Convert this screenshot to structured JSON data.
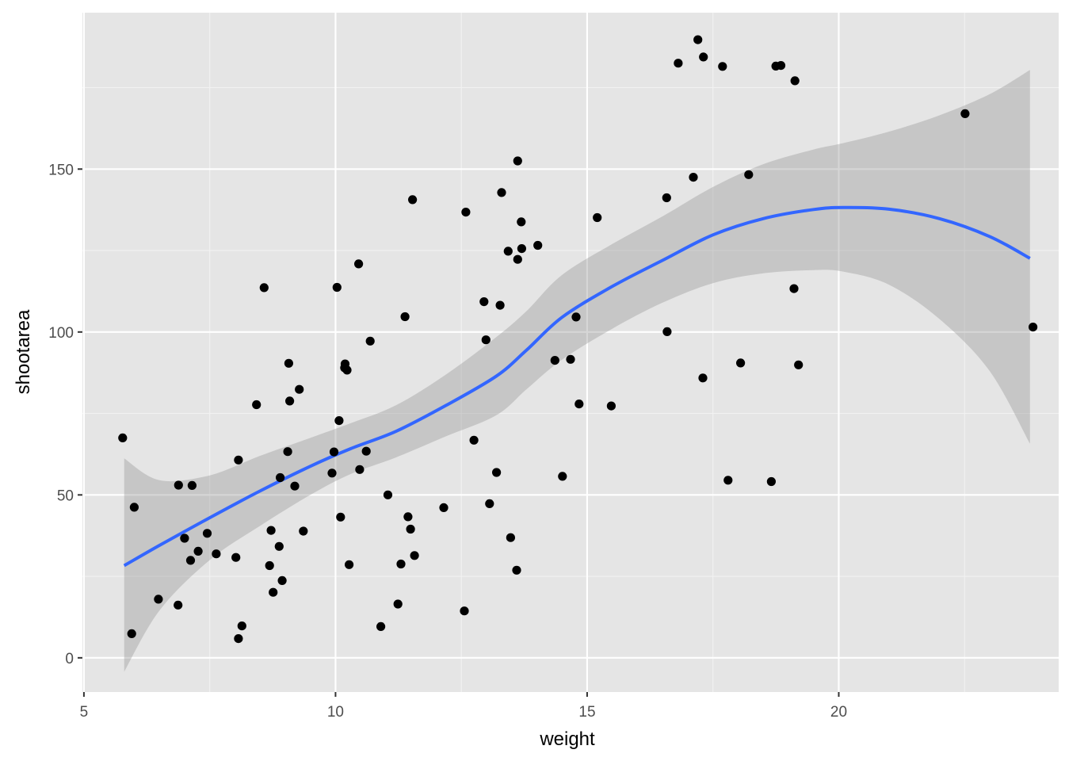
{
  "chart_data": {
    "type": "scatter",
    "title": "",
    "xlabel": "weight",
    "ylabel": "shootarea",
    "xlim": [
      4.97,
      24.37
    ],
    "ylim": [
      -10.5,
      198
    ],
    "x_ticks": [
      5,
      10,
      15,
      20
    ],
    "y_ticks": [
      0,
      50,
      100,
      150
    ],
    "grid": true,
    "legend": "none",
    "colors": {
      "panel": "#e5e5e5",
      "grid_major": "#ffffff",
      "grid_minor": "#f2f2f2",
      "points": "#000000",
      "smooth_line": "#3366ff",
      "ribbon": "#999999"
    },
    "points": [
      {
        "x": 5.77,
        "y": 67.5
      },
      {
        "x": 6.0,
        "y": 46.2
      },
      {
        "x": 5.95,
        "y": 7.4
      },
      {
        "x": 6.48,
        "y": 18.0
      },
      {
        "x": 6.87,
        "y": 16.2
      },
      {
        "x": 6.88,
        "y": 53.0
      },
      {
        "x": 7.0,
        "y": 36.7
      },
      {
        "x": 7.12,
        "y": 29.9
      },
      {
        "x": 7.15,
        "y": 52.9
      },
      {
        "x": 7.27,
        "y": 32.7
      },
      {
        "x": 7.45,
        "y": 38.2
      },
      {
        "x": 7.63,
        "y": 31.9
      },
      {
        "x": 8.02,
        "y": 30.8
      },
      {
        "x": 8.07,
        "y": 60.7
      },
      {
        "x": 8.07,
        "y": 5.9
      },
      {
        "x": 8.14,
        "y": 9.8
      },
      {
        "x": 8.43,
        "y": 77.7
      },
      {
        "x": 8.58,
        "y": 113.6
      },
      {
        "x": 8.69,
        "y": 28.3
      },
      {
        "x": 8.72,
        "y": 39.1
      },
      {
        "x": 8.76,
        "y": 20.1
      },
      {
        "x": 8.88,
        "y": 34.2
      },
      {
        "x": 8.9,
        "y": 55.3
      },
      {
        "x": 8.94,
        "y": 23.7
      },
      {
        "x": 9.05,
        "y": 63.3
      },
      {
        "x": 9.07,
        "y": 90.4
      },
      {
        "x": 9.09,
        "y": 78.8
      },
      {
        "x": 9.19,
        "y": 52.7
      },
      {
        "x": 9.28,
        "y": 82.4
      },
      {
        "x": 9.36,
        "y": 38.9
      },
      {
        "x": 9.93,
        "y": 56.7
      },
      {
        "x": 9.97,
        "y": 63.2
      },
      {
        "x": 10.03,
        "y": 113.7
      },
      {
        "x": 10.07,
        "y": 72.8
      },
      {
        "x": 10.1,
        "y": 43.2
      },
      {
        "x": 10.18,
        "y": 89.0
      },
      {
        "x": 10.19,
        "y": 90.2
      },
      {
        "x": 10.23,
        "y": 88.3
      },
      {
        "x": 10.27,
        "y": 28.6
      },
      {
        "x": 10.46,
        "y": 120.9
      },
      {
        "x": 10.48,
        "y": 57.8
      },
      {
        "x": 10.61,
        "y": 63.4
      },
      {
        "x": 10.69,
        "y": 97.2
      },
      {
        "x": 10.9,
        "y": 9.6
      },
      {
        "x": 11.04,
        "y": 50.0
      },
      {
        "x": 11.24,
        "y": 16.5
      },
      {
        "x": 11.3,
        "y": 28.8
      },
      {
        "x": 11.38,
        "y": 104.7
      },
      {
        "x": 11.44,
        "y": 43.3
      },
      {
        "x": 11.49,
        "y": 39.5
      },
      {
        "x": 11.53,
        "y": 140.6
      },
      {
        "x": 11.57,
        "y": 31.4
      },
      {
        "x": 12.15,
        "y": 46.1
      },
      {
        "x": 12.56,
        "y": 14.4
      },
      {
        "x": 12.59,
        "y": 136.8
      },
      {
        "x": 12.75,
        "y": 66.8
      },
      {
        "x": 12.95,
        "y": 109.3
      },
      {
        "x": 12.99,
        "y": 97.6
      },
      {
        "x": 13.06,
        "y": 47.3
      },
      {
        "x": 13.2,
        "y": 56.9
      },
      {
        "x": 13.27,
        "y": 108.2
      },
      {
        "x": 13.3,
        "y": 142.8
      },
      {
        "x": 13.43,
        "y": 124.8
      },
      {
        "x": 13.48,
        "y": 36.9
      },
      {
        "x": 13.6,
        "y": 26.9
      },
      {
        "x": 13.62,
        "y": 152.5
      },
      {
        "x": 13.62,
        "y": 122.3
      },
      {
        "x": 13.69,
        "y": 133.8
      },
      {
        "x": 13.7,
        "y": 125.6
      },
      {
        "x": 14.02,
        "y": 126.6
      },
      {
        "x": 14.36,
        "y": 91.3
      },
      {
        "x": 14.51,
        "y": 55.7
      },
      {
        "x": 14.67,
        "y": 91.6
      },
      {
        "x": 14.78,
        "y": 104.6
      },
      {
        "x": 14.84,
        "y": 77.9
      },
      {
        "x": 15.2,
        "y": 135.1
      },
      {
        "x": 15.48,
        "y": 77.3
      },
      {
        "x": 16.58,
        "y": 141.2
      },
      {
        "x": 16.59,
        "y": 100.1
      },
      {
        "x": 16.81,
        "y": 182.5
      },
      {
        "x": 17.11,
        "y": 147.5
      },
      {
        "x": 17.2,
        "y": 189.7
      },
      {
        "x": 17.3,
        "y": 85.9
      },
      {
        "x": 17.31,
        "y": 184.4
      },
      {
        "x": 17.69,
        "y": 181.5
      },
      {
        "x": 17.8,
        "y": 54.5
      },
      {
        "x": 18.05,
        "y": 90.5
      },
      {
        "x": 18.21,
        "y": 148.3
      },
      {
        "x": 18.66,
        "y": 54.1
      },
      {
        "x": 18.75,
        "y": 181.6
      },
      {
        "x": 18.85,
        "y": 181.8
      },
      {
        "x": 19.11,
        "y": 113.3
      },
      {
        "x": 19.13,
        "y": 177.1
      },
      {
        "x": 19.2,
        "y": 89.9
      },
      {
        "x": 22.51,
        "y": 167.0
      },
      {
        "x": 23.86,
        "y": 101.5
      }
    ],
    "smooth": {
      "x": [
        5.8,
        6.5,
        7.5,
        8.5,
        9.5,
        10.3,
        11.2,
        12.2,
        13.2,
        13.8,
        14.5,
        15.5,
        16.5,
        17.5,
        18.5,
        19.5,
        20.1,
        21.0,
        22.0,
        23.0,
        23.8
      ],
      "y": [
        28.3,
        34.5,
        43.0,
        51.2,
        58.8,
        64.2,
        69.5,
        77.5,
        86.5,
        94.5,
        104.5,
        114.0,
        122.0,
        129.8,
        134.8,
        137.6,
        138.2,
        137.7,
        134.8,
        129.3,
        122.6
      ],
      "lower": [
        -4.3,
        14.5,
        30.0,
        40.5,
        50.0,
        56.4,
        61.5,
        68.0,
        74.5,
        82.5,
        91.5,
        101.0,
        109.0,
        115.0,
        118.0,
        119.0,
        118.5,
        114.5,
        104.0,
        88.0,
        65.7
      ],
      "upper": [
        61.2,
        54.5,
        56.0,
        62.0,
        67.5,
        72.0,
        77.5,
        87.0,
        98.5,
        106.5,
        117.5,
        127.0,
        135.5,
        144.5,
        151.5,
        156.0,
        158.0,
        161.5,
        166.5,
        173.0,
        180.4
      ]
    }
  }
}
